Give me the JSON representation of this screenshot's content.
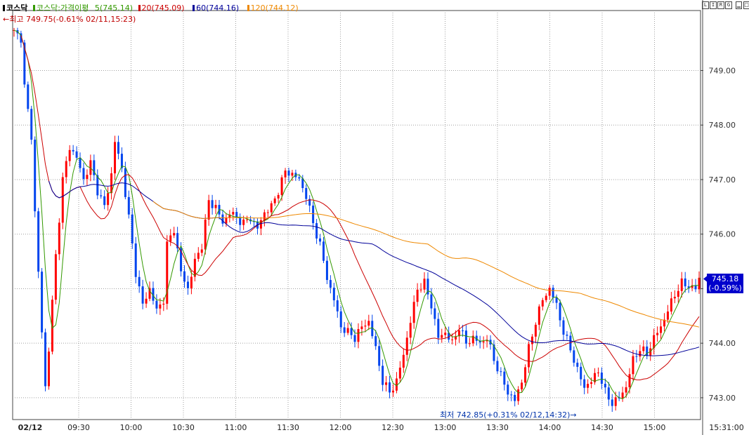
{
  "legend": {
    "symbol": "코스닥",
    "indicator": "코스닥:가격이평",
    "ma5": "5(745.14)",
    "ma20": "20(745.09)",
    "ma60": "60(744.16)",
    "ma120": "120(744.12)"
  },
  "annotations": {
    "high": "←최고 749.75(-0.61% 02/11,15:23)",
    "low": "최저 742.85(+0.31% 02/12,14:32)→"
  },
  "last_price": {
    "value": "745.18",
    "change": "(-0.59%)"
  },
  "scale_buttons": [
    "L",
    "I",
    "R",
    "G"
  ],
  "colors": {
    "up": "#ff0000",
    "down": "#0044ee",
    "ma5": "#339900",
    "ma20": "#cc0000",
    "ma60": "#000099",
    "ma120": "#ee8800",
    "grid": "#a0a0a0",
    "axis": "#444444"
  },
  "chart_data": {
    "type": "candlestick",
    "title": "코스닥",
    "ylim": [
      742.6,
      750.1
    ],
    "y_ticks": [
      "749.00",
      "748.00",
      "747.00",
      "746.00",
      "745.00",
      "744.00",
      "743.00"
    ],
    "x_ticks": [
      "02/12",
      "09:30",
      "10:00",
      "10:30",
      "11:00",
      "11:30",
      "12:00",
      "12:30",
      "13:00",
      "13:30",
      "14:00",
      "14:30",
      "15:00"
    ],
    "x_last_label": "15:31:00",
    "grid": true,
    "series_path": [
      [
        0,
        749.7
      ],
      [
        2,
        749.6
      ],
      [
        3,
        748.7
      ],
      [
        5,
        747.8
      ],
      [
        6,
        746.4
      ],
      [
        8,
        744.2
      ],
      [
        9,
        743.2
      ],
      [
        10,
        743.9
      ],
      [
        12,
        745.6
      ],
      [
        14,
        747.0
      ],
      [
        16,
        747.6
      ],
      [
        18,
        747.4
      ],
      [
        20,
        747.0
      ],
      [
        22,
        747.3
      ],
      [
        24,
        746.8
      ],
      [
        26,
        746.5
      ],
      [
        28,
        747.1
      ],
      [
        29,
        747.7
      ],
      [
        31,
        747.2
      ],
      [
        33,
        746.3
      ],
      [
        35,
        745.3
      ],
      [
        37,
        744.7
      ],
      [
        39,
        745.0
      ],
      [
        41,
        744.6
      ],
      [
        43,
        744.8
      ],
      [
        44,
        745.8
      ],
      [
        46,
        746.1
      ],
      [
        48,
        745.3
      ],
      [
        50,
        745.0
      ],
      [
        52,
        745.5
      ],
      [
        54,
        745.8
      ],
      [
        56,
        746.6
      ],
      [
        58,
        746.5
      ],
      [
        60,
        746.2
      ],
      [
        62,
        746.4
      ],
      [
        64,
        746.3
      ],
      [
        66,
        746.2
      ],
      [
        68,
        746.3
      ],
      [
        70,
        746.1
      ],
      [
        72,
        746.4
      ],
      [
        74,
        746.5
      ],
      [
        76,
        746.8
      ],
      [
        78,
        747.15
      ],
      [
        80,
        747.1
      ],
      [
        82,
        747.0
      ],
      [
        84,
        746.7
      ],
      [
        86,
        746.2
      ],
      [
        88,
        745.8
      ],
      [
        90,
        745.2
      ],
      [
        92,
        744.8
      ],
      [
        94,
        744.3
      ],
      [
        96,
        744.2
      ],
      [
        98,
        744.1
      ],
      [
        100,
        744.3
      ],
      [
        102,
        744.4
      ],
      [
        104,
        743.9
      ],
      [
        106,
        743.3
      ],
      [
        108,
        743.1
      ],
      [
        110,
        743.3
      ],
      [
        112,
        743.8
      ],
      [
        114,
        744.4
      ],
      [
        116,
        745.0
      ],
      [
        118,
        745.1
      ],
      [
        120,
        744.7
      ],
      [
        122,
        744.1
      ],
      [
        124,
        744.2
      ],
      [
        126,
        744.0
      ],
      [
        128,
        744.3
      ],
      [
        130,
        744.0
      ],
      [
        132,
        744.1
      ],
      [
        134,
        744.0
      ],
      [
        136,
        744.1
      ],
      [
        138,
        743.7
      ],
      [
        140,
        743.4
      ],
      [
        142,
        743.1
      ],
      [
        144,
        742.95
      ],
      [
        146,
        743.3
      ],
      [
        148,
        743.9
      ],
      [
        150,
        744.4
      ],
      [
        152,
        744.8
      ],
      [
        154,
        745.0
      ],
      [
        156,
        744.7
      ],
      [
        158,
        744.2
      ],
      [
        160,
        743.9
      ],
      [
        162,
        743.5
      ],
      [
        164,
        743.2
      ],
      [
        166,
        743.3
      ],
      [
        168,
        743.5
      ],
      [
        170,
        743.1
      ],
      [
        172,
        742.9
      ],
      [
        174,
        743.0
      ],
      [
        176,
        743.2
      ],
      [
        178,
        743.7
      ],
      [
        180,
        743.9
      ],
      [
        182,
        743.8
      ],
      [
        184,
        744.1
      ],
      [
        186,
        744.3
      ],
      [
        188,
        744.6
      ],
      [
        190,
        744.9
      ],
      [
        192,
        745.1
      ],
      [
        194,
        745.05
      ],
      [
        196,
        745.0
      ],
      [
        197,
        745.18
      ]
    ],
    "series": [
      {
        "name": "코스닥",
        "type": "candlestick"
      },
      {
        "name": "5",
        "value": 745.14
      },
      {
        "name": "20",
        "value": 745.09
      },
      {
        "name": "60",
        "value": 744.16
      },
      {
        "name": "120",
        "value": 744.12
      }
    ]
  }
}
